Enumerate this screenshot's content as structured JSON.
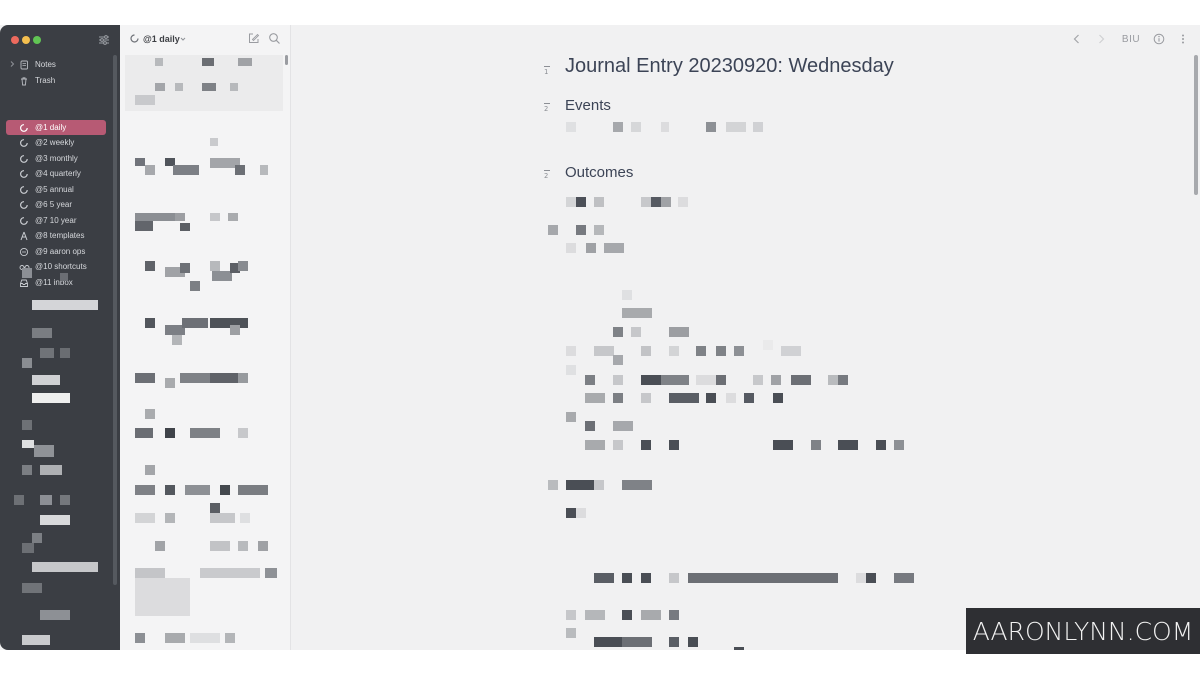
{
  "sidebar": {
    "items": [
      {
        "label": "Notes",
        "icon": "notes-icon",
        "expandable": true
      },
      {
        "label": "Trash",
        "icon": "trash-icon"
      },
      {
        "label": "@1 daily",
        "icon": "spinner-tag-icon",
        "active": true
      },
      {
        "label": "@2 weekly",
        "icon": "spinner-tag-icon"
      },
      {
        "label": "@3 monthly",
        "icon": "spinner-tag-icon"
      },
      {
        "label": "@4 quarterly",
        "icon": "spinner-tag-icon"
      },
      {
        "label": "@5 annual",
        "icon": "spinner-tag-icon"
      },
      {
        "label": "@6 5 year",
        "icon": "spinner-tag-icon"
      },
      {
        "label": "@7 10 year",
        "icon": "spinner-tag-icon"
      },
      {
        "label": "@8 templates",
        "icon": "pen-nib-icon"
      },
      {
        "label": "@9 aaron ops",
        "icon": "circle-tag-icon"
      },
      {
        "label": "@10 shortcuts",
        "icon": "glasses-icon"
      },
      {
        "label": "@11 inbox",
        "icon": "inbox-icon"
      }
    ],
    "active_color": "#b75a74"
  },
  "notelist": {
    "title": "@1 daily"
  },
  "editor": {
    "format_label": "BIU",
    "title": "Journal Entry 20230920: Wednesday",
    "heading_marks": [
      "1",
      "2",
      "2"
    ],
    "headings": [
      "Events",
      "Outcomes"
    ]
  },
  "watermark": "AARONLYNN.COM",
  "colors": {
    "sidebar_bg": "#3b3e44",
    "list_bg": "#f4f4f5",
    "editor_bg": "#f1f1f2",
    "heading_text": "#3c4456"
  }
}
